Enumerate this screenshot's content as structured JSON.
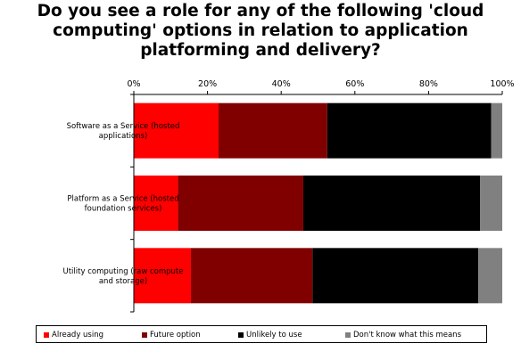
{
  "title_lines": [
    "Do you see a role for any of the following 'cloud",
    "computing' options in relation to application",
    "platforming and delivery?"
  ],
  "chart_data": {
    "type": "bar",
    "orientation": "horizontal",
    "stacked": "percent",
    "title": "Do you see a role for any of the following 'cloud computing' options in relation to application platforming and delivery?",
    "xlim": [
      0,
      100
    ],
    "xticks": [
      "0%",
      "20%",
      "40%",
      "60%",
      "80%",
      "100%"
    ],
    "categories": [
      [
        "Software as a Service (hosted",
        "applications)"
      ],
      [
        "Platform as a Service (hosted",
        "foundation services)"
      ],
      [
        "Utility computing (raw compute",
        "and storage)"
      ]
    ],
    "series": [
      {
        "name": "Already using",
        "color": "#ff0000",
        "values": [
          23,
          12,
          15.5
        ]
      },
      {
        "name": "Future option",
        "color": "#800000",
        "values": [
          29.5,
          34,
          33
        ]
      },
      {
        "name": "Unlikely to use",
        "color": "#000000",
        "values": [
          44.5,
          48,
          45
        ]
      },
      {
        "name": "Don't know what this means",
        "color": "#808080",
        "values": [
          3,
          6,
          6.5
        ]
      }
    ],
    "grid": false,
    "legend_position": "bottom"
  }
}
